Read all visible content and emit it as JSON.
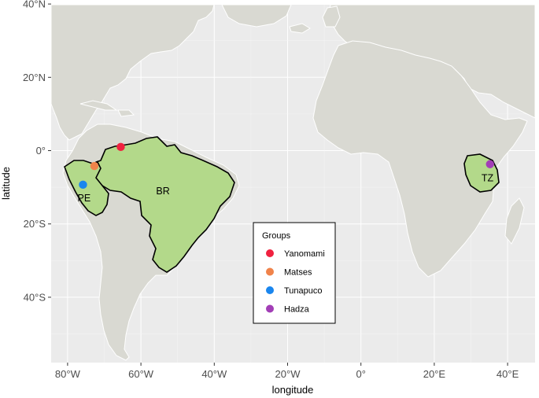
{
  "map": {
    "xlabel": "longitude",
    "ylabel": "latitude",
    "x_ticks": [
      {
        "lon": -80,
        "label": "80°W"
      },
      {
        "lon": -60,
        "label": "60°W"
      },
      {
        "lon": -40,
        "label": "40°W"
      },
      {
        "lon": -20,
        "label": "20°W"
      },
      {
        "lon": 0,
        "label": "0°"
      },
      {
        "lon": 20,
        "label": "20°E"
      },
      {
        "lon": 40,
        "label": "40°E"
      }
    ],
    "y_ticks": [
      {
        "lat": 40,
        "label": "40°N"
      },
      {
        "lat": 20,
        "label": "20°N"
      },
      {
        "lat": 0,
        "label": "0°"
      },
      {
        "lat": -20,
        "label": "20°S"
      },
      {
        "lat": -40,
        "label": "40°S"
      }
    ],
    "xlim": [
      -85,
      50
    ],
    "ylim": [
      -58,
      40
    ],
    "grid": true,
    "highlighted_countries": [
      {
        "code": "PE",
        "label": "PE",
        "lon": -75.5,
        "lat": -13
      },
      {
        "code": "BR",
        "label": "BR",
        "lon": -54,
        "lat": -11
      },
      {
        "code": "TZ",
        "label": "TZ",
        "lon": 34.5,
        "lat": -7.5
      }
    ],
    "colors": {
      "land": "#d9d9d2",
      "highlight": "#b3d98a",
      "ocean": "#ebebeb",
      "border": "#ffffff"
    }
  },
  "legend": {
    "title": "Groups",
    "position": "bottom-center"
  },
  "groups": [
    {
      "name": "Yanomami",
      "color": "#f0213f",
      "lon": -65.5,
      "lat": 1
    },
    {
      "name": "Matses",
      "color": "#f0834a",
      "lon": -72.7,
      "lat": -4.2
    },
    {
      "name": "Tunapuco",
      "color": "#1a86ee",
      "lon": -75.8,
      "lat": -9.3
    },
    {
      "name": "Hadza",
      "color": "#a23eb6",
      "lon": 35.2,
      "lat": -3.7
    }
  ]
}
